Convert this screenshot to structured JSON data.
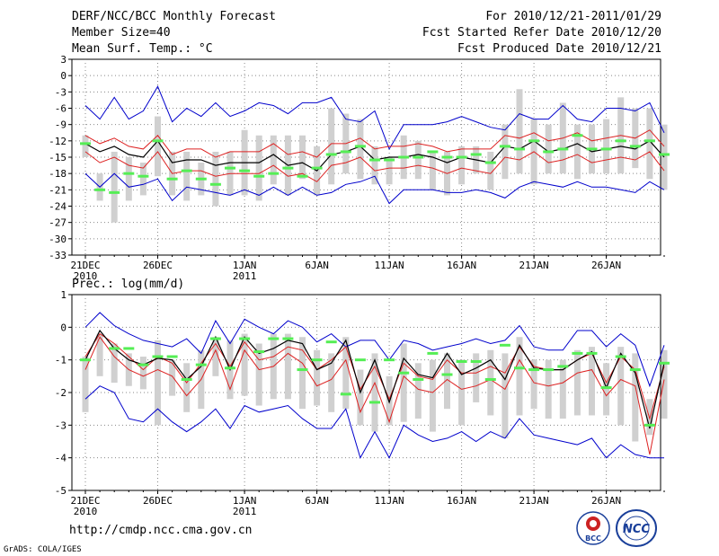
{
  "header": {
    "title": "DERF/NCC/BCC Monthly Forecast",
    "member_size": "Member Size=40",
    "variable": "Mean Surf. Temp.: °C",
    "for_range": "For 2010/12/21-2011/01/29",
    "started_refer": "Fcst Started Refer Date 2010/12/20",
    "produced": "Fcst Produced Date 2010/12/21"
  },
  "footer": {
    "url": "http://cmdp.ncc.cma.gov.cn",
    "grads": "GrADS: COLA/IGES"
  },
  "logos": {
    "bcc": "BCC",
    "ncc": "NCC"
  },
  "colors": {
    "grid": "#888888",
    "bar": "#d0d0d0",
    "green": "#55ee55",
    "ensemble_mean": "#000000",
    "spread": "#dd2222",
    "envelope": "#0000cc"
  },
  "chart_data": [
    {
      "type": "line",
      "id": "temperature",
      "title": "Mean Surf. Temp.: °C",
      "ylim": [
        -33,
        3
      ],
      "yticks": [
        3,
        0,
        -3,
        -6,
        -9,
        -12,
        -15,
        -18,
        -21,
        -24,
        -27,
        -30,
        -33
      ],
      "x_days": 40,
      "xtick_labels": [
        {
          "day": 0,
          "line1": "21DEC",
          "line2": "2010"
        },
        {
          "day": 5,
          "line1": "26DEC",
          "line2": ""
        },
        {
          "day": 11,
          "line1": "1JAN",
          "line2": "2011"
        },
        {
          "day": 16,
          "line1": "6JAN",
          "line2": ""
        },
        {
          "day": 21,
          "line1": "11JAN",
          "line2": ""
        },
        {
          "day": 26,
          "line1": "16JAN",
          "line2": ""
        },
        {
          "day": 31,
          "line1": "21JAN",
          "line2": ""
        },
        {
          "day": 36,
          "line1": "26JAN",
          "line2": ""
        }
      ],
      "series": [
        {
          "name": "max",
          "color": "#0000cc",
          "values": [
            -5.5,
            -8,
            -4,
            -8,
            -6.5,
            -2,
            -8.5,
            -6,
            -7.5,
            -5,
            -7.5,
            -6.5,
            -5,
            -5.5,
            -7,
            -5,
            -5,
            -4,
            -8,
            -8.5,
            -6.5,
            -13.5,
            -9,
            -9,
            -9,
            -8.5,
            -7.5,
            -8.5,
            -9.5,
            -10,
            -7,
            -8,
            -8,
            -5.5,
            -8,
            -8.5,
            -6,
            -6,
            -6.5,
            -5,
            -10.5
          ]
        },
        {
          "name": "p75",
          "color": "#dd2222",
          "values": [
            -11,
            -12.5,
            -11.5,
            -13,
            -13.5,
            -11,
            -14.5,
            -13.5,
            -13.5,
            -15,
            -14,
            -14,
            -14,
            -12.5,
            -14.5,
            -14,
            -15,
            -12.5,
            -12.5,
            -11.5,
            -13.5,
            -13,
            -13,
            -12.5,
            -13,
            -14,
            -13.5,
            -13.5,
            -13.5,
            -11,
            -11.5,
            -10.5,
            -12,
            -11.5,
            -10.5,
            -12,
            -11.5,
            -11,
            -11.5,
            -10,
            -13
          ]
        },
        {
          "name": "mean",
          "color": "#000000",
          "values": [
            -12.5,
            -14,
            -13,
            -14.5,
            -15,
            -12,
            -16,
            -15.5,
            -15.5,
            -16.5,
            -16,
            -16,
            -16,
            -14.5,
            -16.5,
            -16,
            -17.5,
            -14.5,
            -14,
            -13,
            -15.5,
            -15,
            -15,
            -14.5,
            -15,
            -16,
            -15,
            -15.5,
            -16,
            -13,
            -13.5,
            -12,
            -14,
            -13.5,
            -12.5,
            -14,
            -13.5,
            -13,
            -13.5,
            -12,
            -15
          ]
        },
        {
          "name": "p25",
          "color": "#dd2222",
          "values": [
            -14,
            -16,
            -15,
            -16.5,
            -17,
            -14,
            -18,
            -17.5,
            -17.5,
            -18.5,
            -18,
            -18,
            -18,
            -16.5,
            -18.5,
            -18,
            -19.5,
            -16.5,
            -16,
            -15,
            -17.5,
            -17,
            -17,
            -16.5,
            -17,
            -18,
            -17,
            -17.5,
            -18,
            -15,
            -15.5,
            -14,
            -16,
            -15.5,
            -14.5,
            -16,
            -15.5,
            -15,
            -15.5,
            -14,
            -17.5
          ]
        },
        {
          "name": "min",
          "color": "#0000cc",
          "values": [
            -18,
            -20.5,
            -18,
            -20.5,
            -20,
            -19,
            -23,
            -20.5,
            -21,
            -21.5,
            -22,
            -21,
            -22,
            -20.5,
            -22,
            -20.5,
            -22,
            -21.5,
            -20,
            -19.5,
            -18.5,
            -23.5,
            -21,
            -21,
            -21,
            -21.5,
            -21.5,
            -21,
            -21.5,
            -22.5,
            -20.5,
            -19.5,
            -20,
            -20.5,
            -19.5,
            -20.5,
            -20.5,
            -21,
            -21.5,
            -19.5,
            -21
          ]
        }
      ],
      "bars": [
        [
          -11,
          -15
        ],
        [
          -18,
          -23
        ],
        [
          -14,
          -27
        ],
        [
          -15,
          -23
        ],
        [
          -16,
          -22
        ],
        [
          -7.5,
          -18.5
        ],
        [
          -14,
          -22
        ],
        [
          -14,
          -23
        ],
        [
          -16,
          -22
        ],
        [
          -14,
          -24
        ],
        [
          -14,
          -22
        ],
        [
          -10,
          -22
        ],
        [
          -11,
          -23
        ],
        [
          -11,
          -20
        ],
        [
          -11,
          -22
        ],
        [
          -11,
          -19
        ],
        [
          -13,
          -22
        ],
        [
          -6,
          -20
        ],
        [
          -7,
          -18
        ],
        [
          -8,
          -19
        ],
        [
          -13,
          -20
        ],
        [
          -15,
          -20
        ],
        [
          -11,
          -19
        ],
        [
          -12,
          -19
        ],
        [
          -14,
          -21
        ],
        [
          -14,
          -22
        ],
        [
          -13,
          -20
        ],
        [
          -13,
          -18
        ],
        [
          -14,
          -21
        ],
        [
          -9,
          -19
        ],
        [
          -2.5,
          -18
        ],
        [
          -8,
          -20
        ],
        [
          -9,
          -18
        ],
        [
          -5,
          -18
        ],
        [
          -9,
          -19
        ],
        [
          -9,
          -18
        ],
        [
          -8,
          -18
        ],
        [
          -4,
          -18
        ],
        [
          -6,
          -17
        ],
        [
          -6,
          -19
        ],
        [
          -9,
          -21
        ]
      ],
      "markers": [
        -12.5,
        -21,
        -21.5,
        -18,
        -18.5,
        -12,
        -19,
        -17.5,
        -19,
        -20,
        -17,
        -17.5,
        -18.5,
        -18,
        -17,
        -18.5,
        -17,
        -14.5,
        -14,
        -13,
        -15.5,
        -15.5,
        -15,
        -15,
        -14,
        -15,
        -15,
        -14.5,
        -16,
        -13,
        -13.5,
        -12,
        -14,
        -13.5,
        -11,
        -13.5,
        -13.5,
        -12,
        -13,
        -12,
        -14.5
      ]
    },
    {
      "type": "line",
      "id": "precipitation",
      "title": "Prec.: log(mm/d)",
      "ylim": [
        -5,
        1
      ],
      "yticks": [
        1,
        0,
        -1,
        -2,
        -3,
        -4,
        -5
      ],
      "x_days": 40,
      "xtick_labels": [
        {
          "day": 0,
          "line1": "21DEC",
          "line2": "2010"
        },
        {
          "day": 5,
          "line1": "26DEC",
          "line2": ""
        },
        {
          "day": 11,
          "line1": "1JAN",
          "line2": "2011"
        },
        {
          "day": 16,
          "line1": "6JAN",
          "line2": ""
        },
        {
          "day": 21,
          "line1": "11JAN",
          "line2": ""
        },
        {
          "day": 26,
          "line1": "16JAN",
          "line2": ""
        },
        {
          "day": 31,
          "line1": "21JAN",
          "line2": ""
        },
        {
          "day": 36,
          "line1": "26JAN",
          "line2": ""
        }
      ],
      "series": [
        {
          "name": "max",
          "color": "#0000cc",
          "values": [
            0,
            0.45,
            0.05,
            -0.2,
            -0.4,
            -0.5,
            -0.6,
            -0.35,
            -0.8,
            0.2,
            -0.5,
            0.25,
            0,
            -0.2,
            0.2,
            0,
            -0.45,
            -0.2,
            -0.6,
            -0.4,
            -0.4,
            -1,
            -0.4,
            -0.5,
            -0.7,
            -0.6,
            -0.5,
            -0.35,
            -0.5,
            -0.4,
            0.05,
            -0.6,
            -0.7,
            -0.7,
            -0.1,
            -0.1,
            -0.6,
            -0.2,
            -0.55,
            -1.8,
            -0.55
          ]
        },
        {
          "name": "p75",
          "color": "#dd2222",
          "values": [
            -0.9,
            -0.2,
            -0.5,
            -0.9,
            -1.3,
            -0.9,
            -1.1,
            -1.7,
            -1.1,
            -0.5,
            -1.2,
            -0.45,
            -1,
            -0.9,
            -0.6,
            -0.7,
            -1.3,
            -1,
            -0.6,
            -1.9,
            -1.2,
            -2.2,
            -1.1,
            -1.5,
            -1.6,
            -1,
            -1.4,
            -1.4,
            -1.2,
            -1.4,
            -0.6,
            -1.2,
            -1.3,
            -1.3,
            -1,
            -0.8,
            -1.7,
            -0.9,
            -1.3,
            -2.8,
            -1.2
          ]
        },
        {
          "name": "mean",
          "color": "#000000",
          "values": [
            -1,
            -0.1,
            -0.65,
            -1,
            -1.15,
            -0.95,
            -1,
            -1.6,
            -1.2,
            -0.3,
            -1.3,
            -0.3,
            -0.8,
            -0.65,
            -0.4,
            -0.5,
            -1.3,
            -1.1,
            -0.4,
            -2,
            -1,
            -2.3,
            -0.95,
            -1.45,
            -1.55,
            -0.8,
            -1.45,
            -1.25,
            -1,
            -1.6,
            -0.55,
            -1.25,
            -1.3,
            -1.3,
            -1,
            -0.75,
            -1.85,
            -0.8,
            -1.4,
            -3.1,
            -1.1
          ]
        },
        {
          "name": "p25",
          "color": "#dd2222",
          "values": [
            -1.3,
            -0.3,
            -0.9,
            -1.3,
            -1.5,
            -1.3,
            -1.5,
            -2.1,
            -1.6,
            -0.7,
            -1.9,
            -0.7,
            -1.3,
            -1.2,
            -0.8,
            -1.1,
            -1.8,
            -1.6,
            -1,
            -2.6,
            -1.7,
            -2.9,
            -1.5,
            -1.9,
            -2,
            -1.6,
            -1.9,
            -1.8,
            -1.6,
            -1.9,
            -1,
            -1.7,
            -1.8,
            -1.7,
            -1.4,
            -1.3,
            -2.1,
            -1.6,
            -1.8,
            -3.9,
            -1.6
          ]
        },
        {
          "name": "min",
          "color": "#0000cc",
          "values": [
            -2.2,
            -1.8,
            -2,
            -2.8,
            -2.9,
            -2.5,
            -2.9,
            -3.2,
            -2.9,
            -2.5,
            -3.1,
            -2.4,
            -2.6,
            -2.5,
            -2.4,
            -2.8,
            -3.1,
            -3.1,
            -2.5,
            -4,
            -3.2,
            -4,
            -3,
            -3.3,
            -3.5,
            -3.4,
            -3.2,
            -3.5,
            -3.2,
            -3.4,
            -2.8,
            -3.3,
            -3.4,
            -3.5,
            -3.6,
            -3.4,
            -4,
            -3.6,
            -3.9,
            -4,
            -4
          ]
        }
      ],
      "bars": [
        [
          -0.9,
          -2.6
        ],
        [
          -0.2,
          -1.5
        ],
        [
          -0.5,
          -1.7
        ],
        [
          -0.8,
          -1.8
        ],
        [
          -0.9,
          -1.9
        ],
        [
          -0.4,
          -3
        ],
        [
          -1,
          -2.1
        ],
        [
          -1.1,
          -2.6
        ],
        [
          -0.7,
          -2.5
        ],
        [
          -0.3,
          -1.5
        ],
        [
          -0.4,
          -2.2
        ],
        [
          -0.2,
          -2.1
        ],
        [
          -0.5,
          -2.4
        ],
        [
          -0.2,
          -2.2
        ],
        [
          -0.2,
          -2.2
        ],
        [
          -0.3,
          -2.5
        ],
        [
          -0.7,
          -2.4
        ],
        [
          -0.8,
          -2.6
        ],
        [
          -0.3,
          -2.5
        ],
        [
          -1.3,
          -3
        ],
        [
          -0.8,
          -3.2
        ],
        [
          -1.5,
          -3
        ],
        [
          -0.5,
          -2.9
        ],
        [
          -1.1,
          -2.8
        ],
        [
          -1,
          -3.2
        ],
        [
          -0.8,
          -2.5
        ],
        [
          -1,
          -3
        ],
        [
          -0.8,
          -2.3
        ],
        [
          -0.7,
          -2.7
        ],
        [
          -0.8,
          -3.4
        ],
        [
          -0.3,
          -2.7
        ],
        [
          -1,
          -2.5
        ],
        [
          -1,
          -2.8
        ],
        [
          -1,
          -2.8
        ],
        [
          -0.7,
          -2.7
        ],
        [
          -0.6,
          -2.7
        ],
        [
          -1.1,
          -2.7
        ],
        [
          -0.6,
          -3
        ],
        [
          -0.8,
          -3.5
        ],
        [
          -2.2,
          -3.3
        ],
        [
          -0.7,
          -2.8
        ]
      ],
      "markers": [
        -1,
        null,
        -0.65,
        -0.65,
        -1.15,
        -0.9,
        -0.9,
        -1.6,
        -1.15,
        -0.35,
        -1.25,
        -0.35,
        -0.75,
        -0.35,
        -0.35,
        -1.3,
        -1,
        -0.45,
        -2.05,
        -1,
        -2.3,
        -1,
        -1.4,
        -1.6,
        -0.8,
        -1.45,
        -1.05,
        -1.05,
        -1.6,
        -0.55,
        -1.25,
        -1.3,
        -1.3,
        -1.2,
        -0.8,
        -0.8,
        -1.85,
        -0.9,
        -1.3,
        -3,
        -1.1
      ]
    }
  ]
}
